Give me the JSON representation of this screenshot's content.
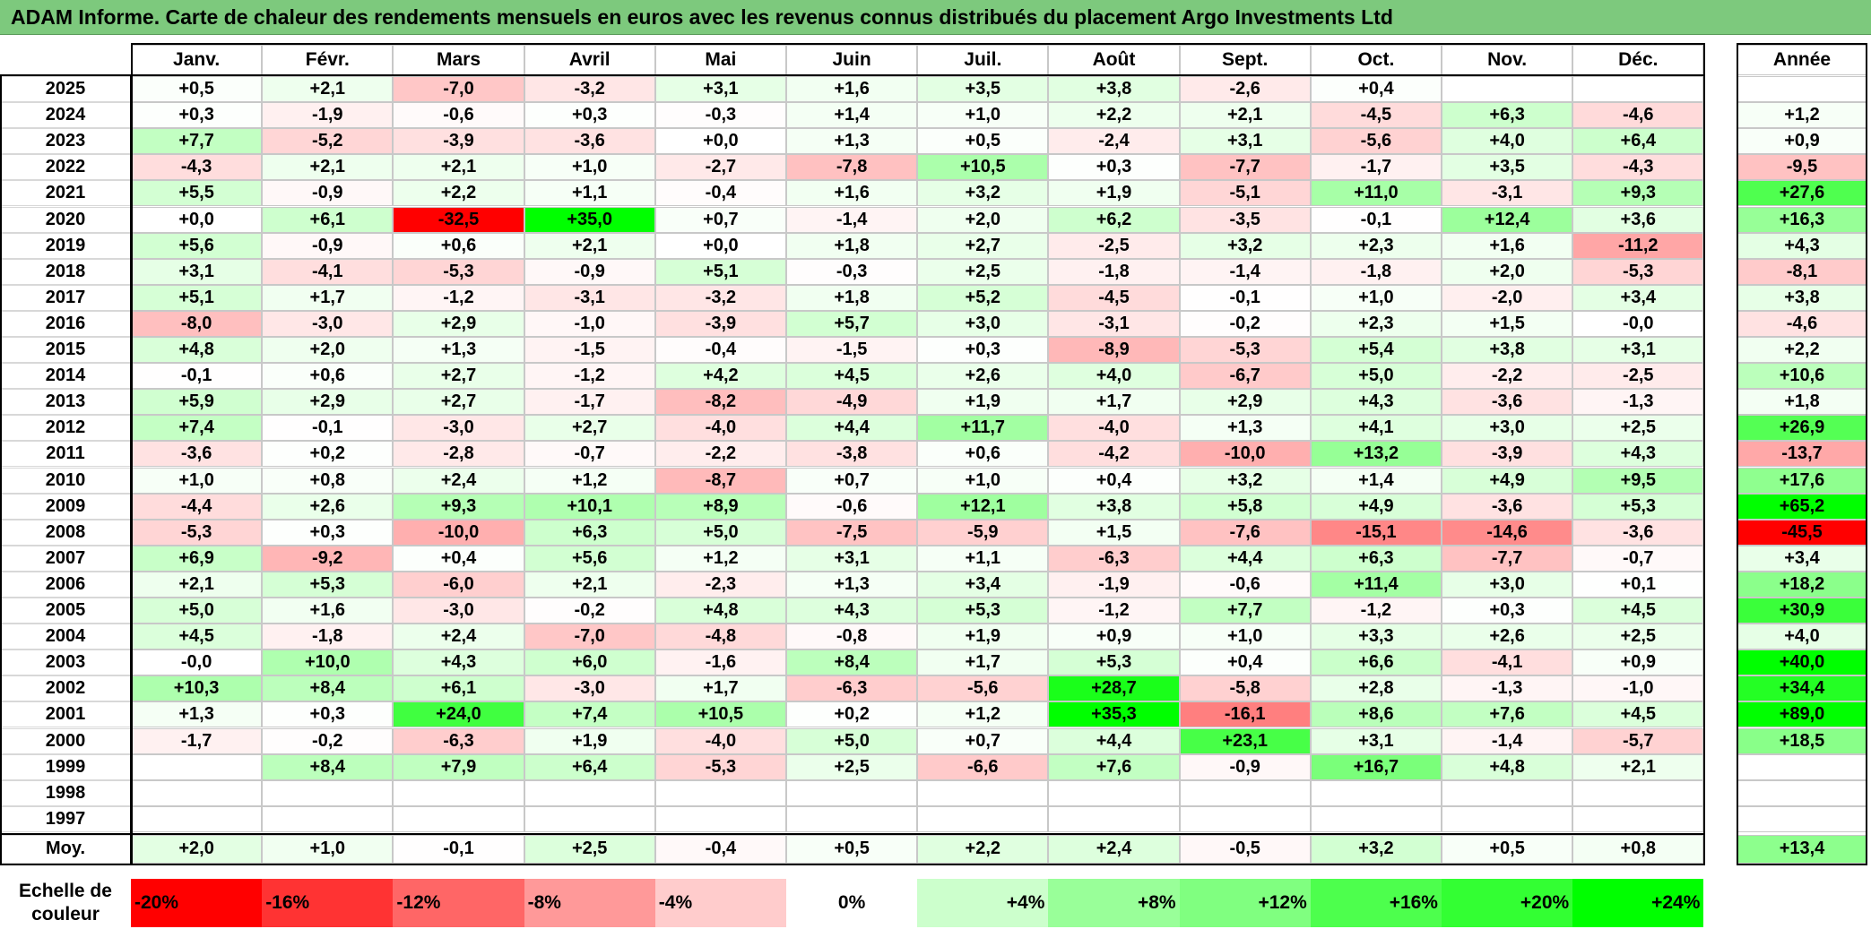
{
  "title": "ADAM Informe. Carte de chaleur des rendements mensuels en euros avec les revenus connus distribués du placement Argo Investments Ltd",
  "chart_data": {
    "type": "heatmap",
    "title": "ADAM Informe. Carte de chaleur des rendements mensuels en euros avec les revenus connus distribués du placement Argo Investments Ltd",
    "months": [
      "Janv.",
      "Févr.",
      "Mars",
      "Avril",
      "Mai",
      "Juin",
      "Juil.",
      "Août",
      "Sept.",
      "Oct.",
      "Nov.",
      "Déc."
    ],
    "year_header": "Année",
    "rows": [
      {
        "year": "2025",
        "values": [
          "+0,5",
          "+2,1",
          "-7,0",
          "-3,2",
          "+3,1",
          "+1,6",
          "+3,5",
          "+3,8",
          "-2,6",
          "+0,4",
          "",
          ""
        ],
        "annual": ""
      },
      {
        "year": "2024",
        "values": [
          "+0,3",
          "-1,9",
          "-0,6",
          "+0,3",
          "-0,3",
          "+1,4",
          "+1,0",
          "+2,2",
          "+2,1",
          "-4,5",
          "+6,3",
          "-4,6"
        ],
        "annual": "+1,2"
      },
      {
        "year": "2023",
        "values": [
          "+7,7",
          "-5,2",
          "-3,9",
          "-3,6",
          "+0,0",
          "+1,3",
          "+0,5",
          "-2,4",
          "+3,1",
          "-5,6",
          "+4,0",
          "+6,4"
        ],
        "annual": "+0,9"
      },
      {
        "year": "2022",
        "values": [
          "-4,3",
          "+2,1",
          "+2,1",
          "+1,0",
          "-2,7",
          "-7,8",
          "+10,5",
          "+0,3",
          "-7,7",
          "-1,7",
          "+3,5",
          "-4,3"
        ],
        "annual": "-9,5"
      },
      {
        "year": "2021",
        "values": [
          "+5,5",
          "-0,9",
          "+2,2",
          "+1,1",
          "-0,4",
          "+1,6",
          "+3,2",
          "+1,9",
          "-5,1",
          "+11,0",
          "-3,1",
          "+9,3"
        ],
        "annual": "+27,6"
      },
      {
        "year": "2020",
        "values": [
          "+0,0",
          "+6,1",
          "-32,5",
          "+35,0",
          "+0,7",
          "-1,4",
          "+2,0",
          "+6,2",
          "-3,5",
          "-0,1",
          "+12,4",
          "+3,6"
        ],
        "annual": "+16,3"
      },
      {
        "year": "2019",
        "values": [
          "+5,6",
          "-0,9",
          "+0,6",
          "+2,1",
          "+0,0",
          "+1,8",
          "+2,7",
          "-2,5",
          "+3,2",
          "+2,3",
          "+1,6",
          "-11,2"
        ],
        "annual": "+4,3"
      },
      {
        "year": "2018",
        "values": [
          "+3,1",
          "-4,1",
          "-5,3",
          "-0,9",
          "+5,1",
          "-0,3",
          "+2,5",
          "-1,8",
          "-1,4",
          "-1,8",
          "+2,0",
          "-5,3"
        ],
        "annual": "-8,1"
      },
      {
        "year": "2017",
        "values": [
          "+5,1",
          "+1,7",
          "-1,2",
          "-3,1",
          "-3,2",
          "+1,8",
          "+5,2",
          "-4,5",
          "-0,1",
          "+1,0",
          "-2,0",
          "+3,4"
        ],
        "annual": "+3,8"
      },
      {
        "year": "2016",
        "values": [
          "-8,0",
          "-3,0",
          "+2,9",
          "-1,0",
          "-3,9",
          "+5,7",
          "+3,0",
          "-3,1",
          "-0,2",
          "+2,3",
          "+1,5",
          "-0,0"
        ],
        "annual": "-4,6"
      },
      {
        "year": "2015",
        "values": [
          "+4,8",
          "+2,0",
          "+1,3",
          "-1,5",
          "-0,4",
          "-1,5",
          "+0,3",
          "-8,9",
          "-5,3",
          "+5,4",
          "+3,8",
          "+3,1"
        ],
        "annual": "+2,2"
      },
      {
        "year": "2014",
        "values": [
          "-0,1",
          "+0,6",
          "+2,7",
          "-1,2",
          "+4,2",
          "+4,5",
          "+2,6",
          "+4,0",
          "-6,7",
          "+5,0",
          "-2,2",
          "-2,5"
        ],
        "annual": "+10,6"
      },
      {
        "year": "2013",
        "values": [
          "+5,9",
          "+2,9",
          "+2,7",
          "-1,7",
          "-8,2",
          "-4,9",
          "+1,9",
          "+1,7",
          "+2,9",
          "+4,3",
          "-3,6",
          "-1,3"
        ],
        "annual": "+1,8"
      },
      {
        "year": "2012",
        "values": [
          "+7,4",
          "-0,1",
          "-3,0",
          "+2,7",
          "-4,0",
          "+4,4",
          "+11,7",
          "-4,0",
          "+1,3",
          "+4,1",
          "+3,0",
          "+2,5"
        ],
        "annual": "+26,9"
      },
      {
        "year": "2011",
        "values": [
          "-3,6",
          "+0,2",
          "-2,8",
          "-0,7",
          "-2,2",
          "-3,8",
          "+0,6",
          "-4,2",
          "-10,0",
          "+13,2",
          "-3,9",
          "+4,3"
        ],
        "annual": "-13,7"
      },
      {
        "year": "2010",
        "values": [
          "+1,0",
          "+0,8",
          "+2,4",
          "+1,2",
          "-8,7",
          "+0,7",
          "+1,0",
          "+0,4",
          "+3,2",
          "+1,4",
          "+4,9",
          "+9,5"
        ],
        "annual": "+17,6"
      },
      {
        "year": "2009",
        "values": [
          "-4,4",
          "+2,6",
          "+9,3",
          "+10,1",
          "+8,9",
          "-0,6",
          "+12,1",
          "+3,8",
          "+5,8",
          "+4,9",
          "-3,6",
          "+5,3"
        ],
        "annual": "+65,2"
      },
      {
        "year": "2008",
        "values": [
          "-5,3",
          "+0,3",
          "-10,0",
          "+6,3",
          "+5,0",
          "-7,5",
          "-5,9",
          "+1,5",
          "-7,6",
          "-15,1",
          "-14,6",
          "-3,6"
        ],
        "annual": "-45,5"
      },
      {
        "year": "2007",
        "values": [
          "+6,9",
          "-9,2",
          "+0,4",
          "+5,6",
          "+1,2",
          "+3,1",
          "+1,1",
          "-6,3",
          "+4,4",
          "+6,3",
          "-7,7",
          "-0,7"
        ],
        "annual": "+3,4"
      },
      {
        "year": "2006",
        "values": [
          "+2,1",
          "+5,3",
          "-6,0",
          "+2,1",
          "-2,3",
          "+1,3",
          "+3,4",
          "-1,9",
          "-0,6",
          "+11,4",
          "+3,0",
          "+0,1"
        ],
        "annual": "+18,2"
      },
      {
        "year": "2005",
        "values": [
          "+5,0",
          "+1,6",
          "-3,0",
          "-0,2",
          "+4,8",
          "+4,3",
          "+5,3",
          "-1,2",
          "+7,7",
          "-1,2",
          "+0,3",
          "+4,5"
        ],
        "annual": "+30,9"
      },
      {
        "year": "2004",
        "values": [
          "+4,5",
          "-1,8",
          "+2,4",
          "-7,0",
          "-4,8",
          "-0,8",
          "+1,9",
          "+0,9",
          "+1,0",
          "+3,3",
          "+2,6",
          "+2,5"
        ],
        "annual": "+4,0"
      },
      {
        "year": "2003",
        "values": [
          "-0,0",
          "+10,0",
          "+4,3",
          "+6,0",
          "-1,6",
          "+8,4",
          "+1,7",
          "+5,3",
          "+0,4",
          "+6,6",
          "-4,1",
          "+0,9"
        ],
        "annual": "+40,0"
      },
      {
        "year": "2002",
        "values": [
          "+10,3",
          "+8,4",
          "+6,1",
          "-3,0",
          "+1,7",
          "-6,3",
          "-5,6",
          "+28,7",
          "-5,8",
          "+2,8",
          "-1,3",
          "-1,0"
        ],
        "annual": "+34,4"
      },
      {
        "year": "2001",
        "values": [
          "+1,3",
          "+0,3",
          "+24,0",
          "+7,4",
          "+10,5",
          "+0,2",
          "+1,2",
          "+35,3",
          "-16,1",
          "+8,6",
          "+7,6",
          "+4,5"
        ],
        "annual": "+89,0"
      },
      {
        "year": "2000",
        "values": [
          "-1,7",
          "-0,2",
          "-6,3",
          "+1,9",
          "-4,0",
          "+5,0",
          "+0,7",
          "+4,4",
          "+23,1",
          "+3,1",
          "-1,4",
          "-5,7"
        ],
        "annual": "+18,5"
      },
      {
        "year": "1999",
        "values": [
          "",
          "+8,4",
          "+7,9",
          "+6,4",
          "-5,3",
          "+2,5",
          "-6,6",
          "+7,6",
          "-0,9",
          "+16,7",
          "+4,8",
          "+2,1"
        ],
        "annual": ""
      },
      {
        "year": "1998",
        "values": [
          "",
          "",
          "",
          "",
          "",
          "",
          "",
          "",
          "",
          "",
          "",
          ""
        ],
        "annual": ""
      },
      {
        "year": "1997",
        "values": [
          "",
          "",
          "",
          "",
          "",
          "",
          "",
          "",
          "",
          "",
          "",
          ""
        ],
        "annual": ""
      }
    ],
    "average": {
      "label": "Moy.",
      "values": [
        "+2,0",
        "+1,0",
        "-0,1",
        "+2,5",
        "-0,4",
        "+0,5",
        "+2,2",
        "+2,4",
        "-0,5",
        "+3,2",
        "+0,5",
        "+0,8"
      ],
      "annual": "+13,4"
    },
    "color_scale": {
      "label": "Echelle de couleur",
      "steps": [
        {
          "label": "-20%",
          "color": "#ff0000"
        },
        {
          "label": "-16%",
          "color": "#ff3333"
        },
        {
          "label": "-12%",
          "color": "#ff6666"
        },
        {
          "label": "-8%",
          "color": "#ff9999"
        },
        {
          "label": "-4%",
          "color": "#ffcccc"
        },
        {
          "label": "0%",
          "color": "#ffffff"
        },
        {
          "label": "+4%",
          "color": "#ccffcc"
        },
        {
          "label": "+8%",
          "color": "#99ff99"
        },
        {
          "label": "+12%",
          "color": "#80ff80"
        },
        {
          "label": "+16%",
          "color": "#4dff4d"
        },
        {
          "label": "+20%",
          "color": "#33ff33"
        },
        {
          "label": "+24%",
          "color": "#00ff00"
        }
      ]
    }
  }
}
